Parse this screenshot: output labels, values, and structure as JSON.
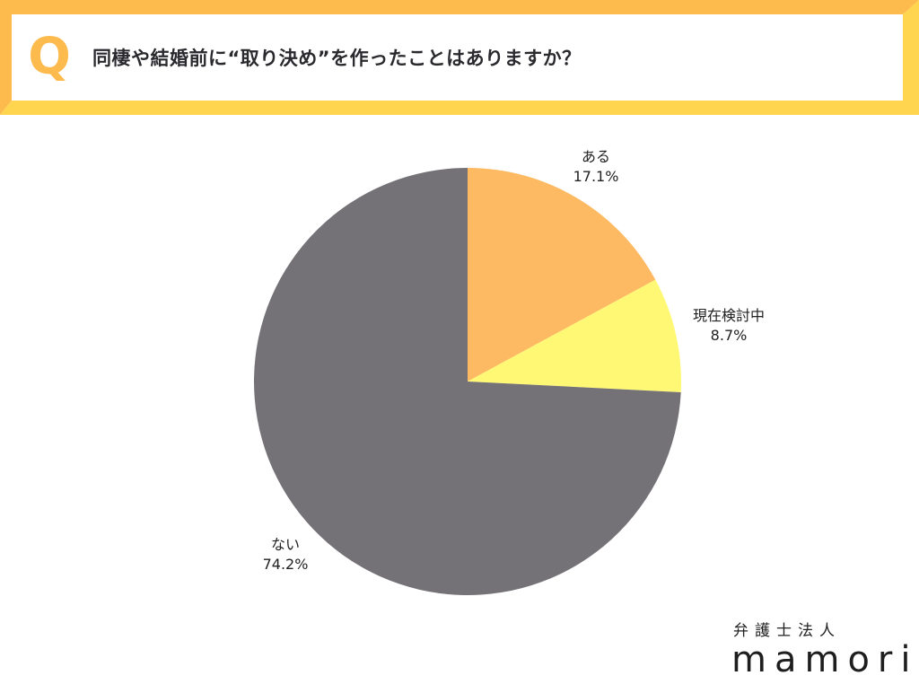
{
  "header": {
    "q_letter": "Q",
    "question": "同棲や結婚前に“取り決め”を作ったことはありますか？"
  },
  "colors": {
    "frame_top_left": "#FDBA4D",
    "frame_bottom_right": "#FFD54F",
    "slice_aru": "#FDBA62",
    "slice_kentou": "#FFF875",
    "slice_nai": "#747277"
  },
  "chart_data": {
    "type": "pie",
    "title": "同棲や結婚前に“取り決め”を作ったことはありますか？",
    "categories": [
      "ある",
      "現在検討中",
      "ない"
    ],
    "values": [
      17.1,
      8.7,
      74.2
    ],
    "unit": "%",
    "start_angle_deg": 0,
    "direction": "clockwise",
    "colors": [
      "#FDBA62",
      "#FFF875",
      "#747277"
    ],
    "labels": [
      {
        "name": "ある",
        "value": "17.1%"
      },
      {
        "name": "現在検討中",
        "value": "8.7%"
      },
      {
        "name": "ない",
        "value": "74.2%"
      }
    ],
    "legend": "none (labels placed outside slices)"
  },
  "logo": {
    "subtitle": "弁護士法人",
    "name": "mamori"
  }
}
